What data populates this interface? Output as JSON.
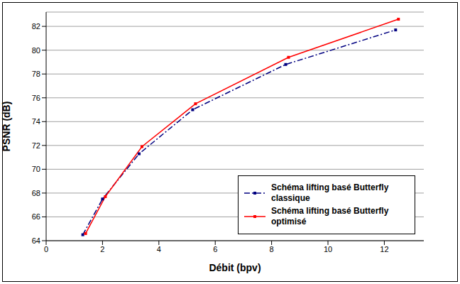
{
  "chart_data": {
    "type": "line",
    "x_label": "Débit (bpv)",
    "y_label": "PSNR (dB)",
    "xlim": [
      0,
      13.4
    ],
    "xticks": [
      0,
      2,
      4,
      6,
      8,
      10,
      12
    ],
    "ylim": [
      64,
      83.2
    ],
    "yticks": [
      64,
      66,
      68,
      70,
      72,
      74,
      76,
      78,
      80,
      82
    ],
    "grid": true,
    "legend": "lower right",
    "series": [
      {
        "name": "Schéma lifting basé Butterfly classique",
        "color": "#000080",
        "line_style": "dashdot",
        "marker": "square",
        "x": [
          1.3,
          2.0,
          3.3,
          5.2,
          8.5,
          12.4
        ],
        "values": [
          64.5,
          67.5,
          71.3,
          75.0,
          78.8,
          81.7
        ]
      },
      {
        "name": "Schéma lifting basé Butterfly optimisé",
        "color": "#ff0000",
        "line_style": "solid",
        "marker": "square",
        "x": [
          1.4,
          2.1,
          3.4,
          5.3,
          8.6,
          12.5
        ],
        "values": [
          64.6,
          67.7,
          71.9,
          75.5,
          79.4,
          82.6
        ]
      }
    ]
  }
}
